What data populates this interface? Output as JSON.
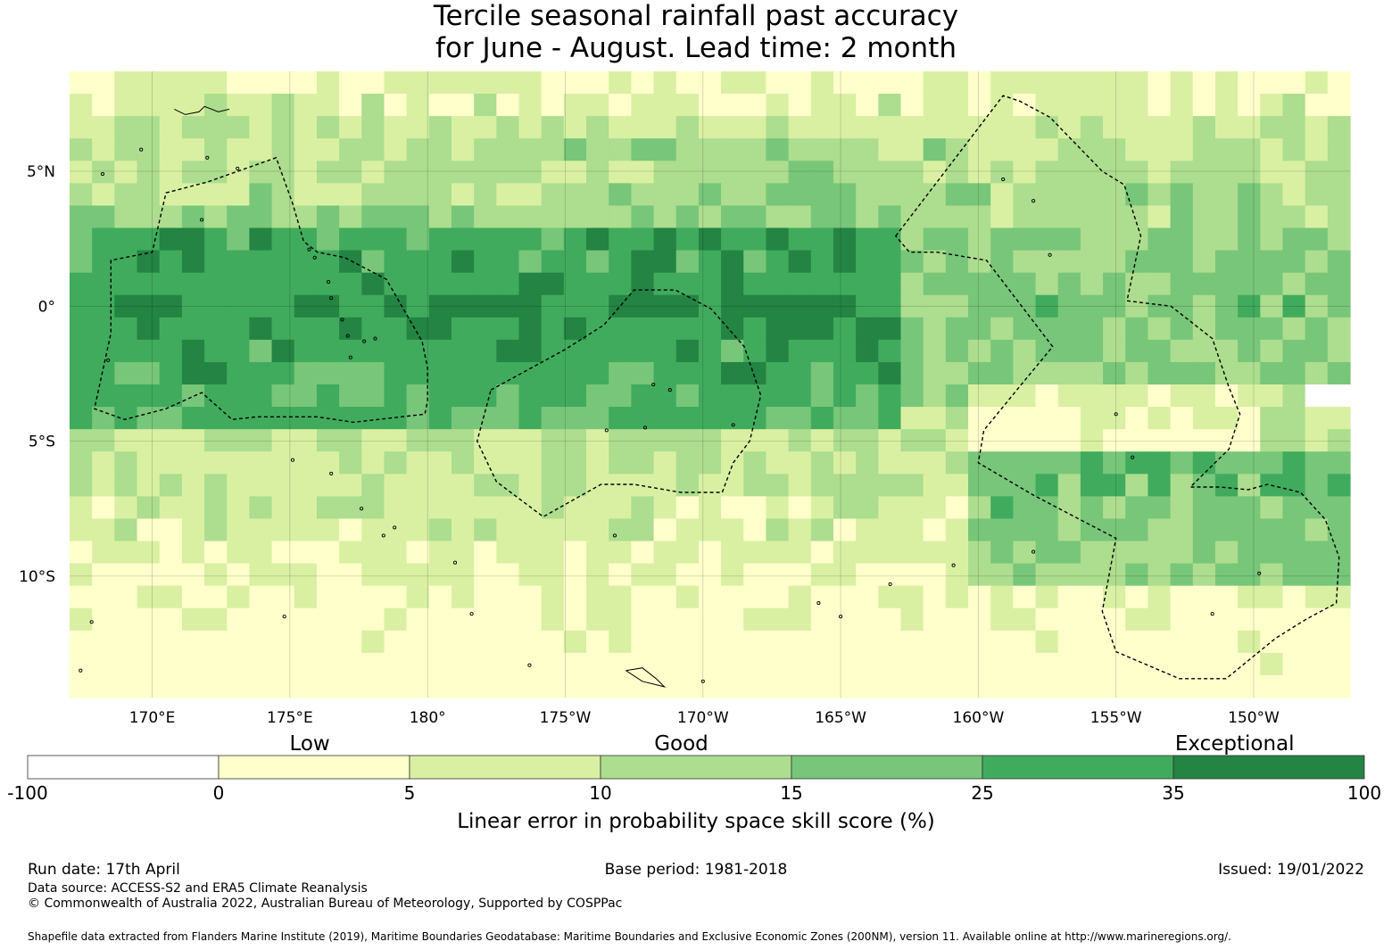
{
  "title": {
    "line1": "Tercile seasonal rainfall past accuracy",
    "line2": "for June - August. Lead time: 2 month"
  },
  "map": {
    "lon_range": [
      -193,
      -146.5
    ],
    "lat_range": [
      -14.5,
      8.7
    ],
    "lon_ticks": [
      {
        "value": -190,
        "label": "170°E"
      },
      {
        "value": -185,
        "label": "175°E"
      },
      {
        "value": -180,
        "label": "180°"
      },
      {
        "value": -175,
        "label": "175°W"
      },
      {
        "value": -170,
        "label": "170°W"
      },
      {
        "value": -165,
        "label": "165°W"
      },
      {
        "value": -160,
        "label": "160°W"
      },
      {
        "value": -155,
        "label": "155°W"
      },
      {
        "value": -150,
        "label": "150°W"
      }
    ],
    "lat_ticks": [
      {
        "value": 5,
        "label": "5°N"
      },
      {
        "value": 0,
        "label": "0°"
      },
      {
        "value": -5,
        "label": "5°S"
      },
      {
        "value": -10,
        "label": "10°S"
      }
    ],
    "eez_boundaries": [
      [
        [
          -189.5,
          4.2
        ],
        [
          -188,
          4.6
        ],
        [
          -185.5,
          5.5
        ],
        [
          -184.9,
          3.8
        ],
        [
          -184.5,
          2.4
        ],
        [
          -184,
          2
        ],
        [
          -183,
          1.8
        ],
        [
          -181.5,
          1
        ],
        [
          -180.2,
          -1.3
        ],
        [
          -180,
          -2.3
        ],
        [
          -180,
          -3.5
        ],
        [
          -180.1,
          -4
        ],
        [
          -182.7,
          -4.3
        ],
        [
          -184,
          -4.1
        ],
        [
          -186.2,
          -4.1
        ],
        [
          -187.1,
          -4.2
        ],
        [
          -188.2,
          -3.2
        ],
        [
          -189.5,
          -3.8
        ],
        [
          -191,
          -4.2
        ],
        [
          -192.1,
          -3.8
        ],
        [
          -191.5,
          -1
        ],
        [
          -191.5,
          1.7
        ],
        [
          -190,
          2
        ],
        [
          -189.5,
          4.2
        ]
      ],
      [
        [
          -177.7,
          -3.1
        ],
        [
          -175,
          -1.6
        ],
        [
          -173.6,
          -0.7
        ],
        [
          -172.5,
          0.6
        ],
        [
          -171,
          0.6
        ],
        [
          -169.7,
          -0.1
        ],
        [
          -168.5,
          -1.5
        ],
        [
          -167.9,
          -3.3
        ],
        [
          -168.3,
          -5
        ],
        [
          -168.9,
          -5.8
        ],
        [
          -169.3,
          -6.9
        ],
        [
          -170.8,
          -6.9
        ],
        [
          -172.5,
          -6.6
        ],
        [
          -173.7,
          -6.6
        ],
        [
          -175.8,
          -7.8
        ],
        [
          -177.5,
          -6.5
        ],
        [
          -178.2,
          -5
        ],
        [
          -177.7,
          -3.1
        ]
      ],
      [
        [
          -163,
          2.6
        ],
        [
          -159.1,
          7.8
        ],
        [
          -158.5,
          7.6
        ],
        [
          -157.4,
          7
        ],
        [
          -155.5,
          5
        ],
        [
          -154.7,
          4.5
        ],
        [
          -154.1,
          2.6
        ],
        [
          -154.6,
          0.2
        ],
        [
          -153,
          0
        ],
        [
          -151.5,
          -1.2
        ],
        [
          -150.9,
          -3
        ],
        [
          -150.5,
          -4
        ],
        [
          -150.9,
          -5.3
        ],
        [
          -152.3,
          -6.7
        ],
        [
          -151.2,
          -6.7
        ],
        [
          -150.2,
          -6.8
        ],
        [
          -149.5,
          -6.6
        ],
        [
          -148.3,
          -6.9
        ],
        [
          -147.4,
          -7.9
        ],
        [
          -146.9,
          -9.3
        ],
        [
          -147,
          -11
        ],
        [
          -148.1,
          -11.6
        ],
        [
          -149.2,
          -12.3
        ],
        [
          -151,
          -13.8
        ],
        [
          -152.7,
          -13.8
        ],
        [
          -155,
          -12.8
        ],
        [
          -155.5,
          -11.3
        ],
        [
          -155,
          -8.6
        ],
        [
          -158,
          -7
        ],
        [
          -160,
          -5.8
        ],
        [
          -159.8,
          -4.6
        ],
        [
          -158.6,
          -3.1
        ],
        [
          -157.3,
          -1.5
        ],
        [
          -159.7,
          1.7
        ],
        [
          -161.5,
          2
        ],
        [
          -162.5,
          2
        ],
        [
          -163,
          2.6
        ]
      ]
    ],
    "islands": [
      [
        -184.3,
        2.1
      ],
      [
        -184.1,
        1.8
      ],
      [
        -183.6,
        0.9
      ],
      [
        -183.5,
        0.3
      ],
      [
        -183.1,
        -0.5
      ],
      [
        -182.9,
        -1.1
      ],
      [
        -182.3,
        -1.3
      ],
      [
        -181.9,
        -1.2
      ],
      [
        -182.8,
        -1.9
      ],
      [
        -188.2,
        3.2
      ],
      [
        -191.6,
        -2
      ],
      [
        -171.8,
        -2.9
      ],
      [
        -171.2,
        -3.1
      ],
      [
        -173.5,
        -4.6
      ],
      [
        -172.1,
        -4.5
      ],
      [
        -168.9,
        -4.4
      ],
      [
        -158,
        3.9
      ],
      [
        -157.4,
        1.9
      ],
      [
        -159.1,
        4.7
      ],
      [
        -155,
        -4
      ],
      [
        -154.4,
        -5.6
      ],
      [
        -158,
        -9.1
      ],
      [
        -163.2,
        -10.3
      ],
      [
        -165.8,
        -11
      ],
      [
        -165,
        -11.5
      ],
      [
        -173.2,
        -8.5
      ],
      [
        -178.4,
        -11.4
      ],
      [
        -179,
        -9.5
      ],
      [
        -181.2,
        -8.2
      ],
      [
        -181.6,
        -8.5
      ],
      [
        -184.9,
        -5.7
      ],
      [
        -183.5,
        -6.2
      ],
      [
        -182.4,
        -7.5
      ],
      [
        -191.8,
        4.9
      ],
      [
        -190.4,
        5.8
      ],
      [
        -188,
        5.5
      ],
      [
        -186.9,
        5.1
      ],
      [
        -185.2,
        -11.5
      ],
      [
        -192.2,
        -11.7
      ],
      [
        -192.6,
        -13.5
      ],
      [
        -151.5,
        -11.4
      ],
      [
        -149.8,
        -9.9
      ],
      [
        -160.9,
        -9.6
      ],
      [
        -170,
        -13.9
      ],
      [
        -176.3,
        -13.3
      ]
    ],
    "samoa": [
      [
        -172.8,
        -13.5
      ],
      [
        -172.2,
        -13.4
      ],
      [
        -171.7,
        -13.8
      ],
      [
        -171.4,
        -14.1
      ],
      [
        -172.2,
        -13.9
      ],
      [
        -172.8,
        -13.5
      ]
    ],
    "top_coast": [
      [
        -189.2,
        7.3
      ],
      [
        -188.8,
        7.1
      ],
      [
        -188.3,
        7.2
      ],
      [
        -188.1,
        7.4
      ],
      [
        -187.6,
        7.2
      ],
      [
        -187.2,
        7.3
      ]
    ]
  },
  "colorbar": {
    "category_labels": [
      {
        "label": "Low",
        "at": 0.211
      },
      {
        "label": "Good",
        "at": 0.489
      },
      {
        "label": "Exceptional",
        "at": 0.903
      }
    ],
    "bins": [
      {
        "from": "-100",
        "to": "0",
        "color": "#ffffff"
      },
      {
        "from": "0",
        "to": "5",
        "color": "#ffffcc"
      },
      {
        "from": "5",
        "to": "10",
        "color": "#d9f0a3"
      },
      {
        "from": "10",
        "to": "15",
        "color": "#addd8e"
      },
      {
        "from": "15",
        "to": "25",
        "color": "#78c679"
      },
      {
        "from": "25",
        "to": "35",
        "color": "#41ab5d"
      },
      {
        "from": "35",
        "to": "100",
        "color": "#238443"
      }
    ],
    "tick_labels": [
      "-100",
      "0",
      "5",
      "10",
      "15",
      "25",
      "35",
      "100"
    ],
    "title": "Linear error in probability space skill score (%)"
  },
  "footer": {
    "run_date": "Run date: 17th April",
    "base_period": "Base period: 1981-2018",
    "issued": "Issued: 19/01/2022",
    "data_source": "Data source: ACCESS-S2 and ERA5 Climate Reanalysis",
    "copyright": "© Commonwealth of Australia 2022, Australian Bureau of Meteorology, Supported by COSPPac",
    "shapefile": "Shapefile data extracted from Flanders Marine Institute (2019), Maritime Boundaries Geodatabase: Maritime Boundaries and Exclusive Economic Zones (200NM), version 11. Available online at http://www.marineregions.org/."
  }
}
